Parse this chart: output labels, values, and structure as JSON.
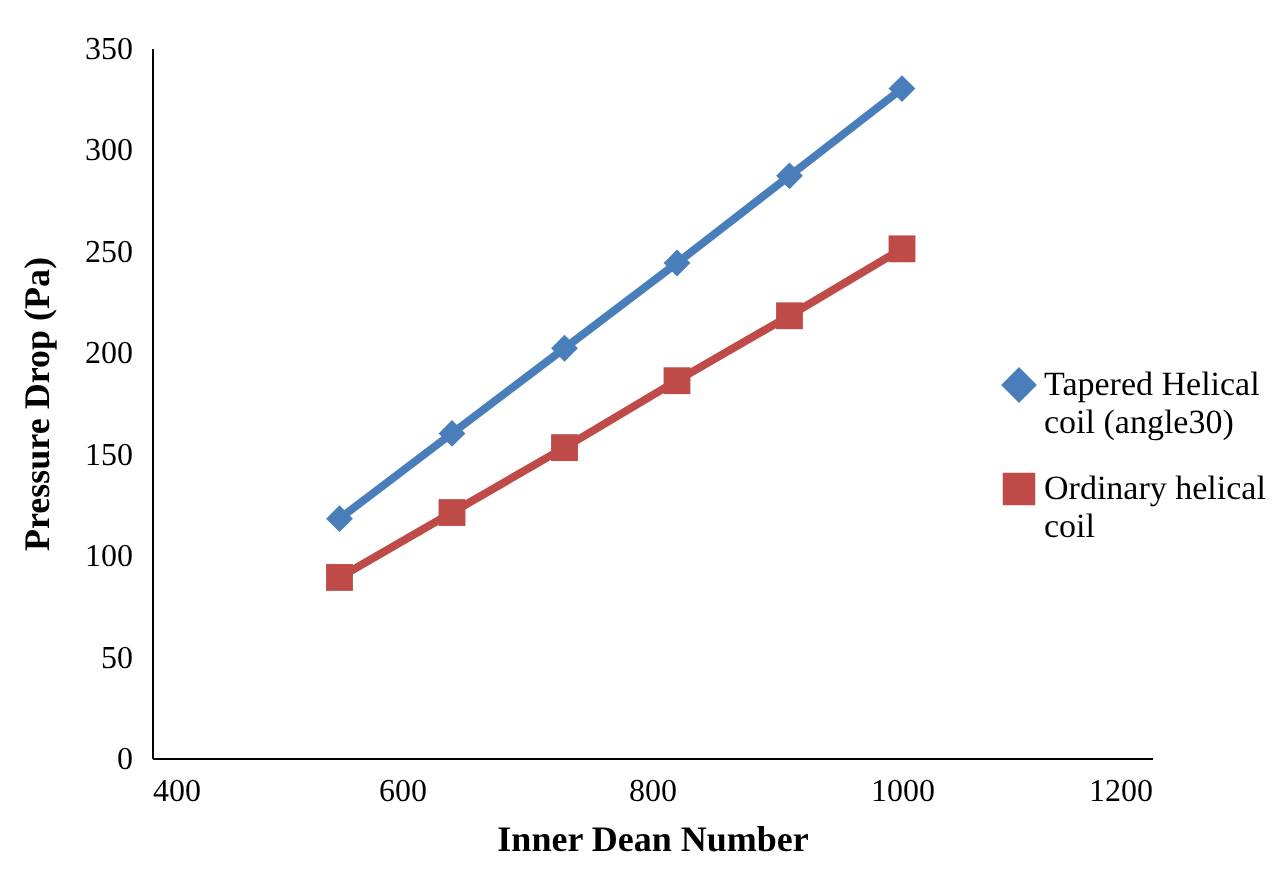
{
  "chart_data": {
    "type": "line",
    "xlabel": "Inner Dean Number",
    "ylabel": "Pressure Drop (Pa)",
    "x": [
      550,
      640,
      730,
      820,
      910,
      1000
    ],
    "series": [
      {
        "name": "Tapered Helical coil (angle30)",
        "color": "#4a7ebb",
        "marker": "diamond",
        "values": [
          118,
          160,
          202,
          244,
          287,
          330
        ]
      },
      {
        "name": "Ordinary helical coil",
        "color": "#be4b48",
        "marker": "square",
        "values": [
          89,
          121,
          153,
          186,
          218,
          251
        ]
      }
    ],
    "xlim": [
      400,
      1200
    ],
    "xticks": [
      400,
      600,
      800,
      1000,
      1200
    ],
    "ylim": [
      0,
      350
    ],
    "yticks": [
      0,
      50,
      100,
      150,
      200,
      250,
      300,
      350
    ],
    "grid": false,
    "legend": "right",
    "line_style": "solid"
  }
}
